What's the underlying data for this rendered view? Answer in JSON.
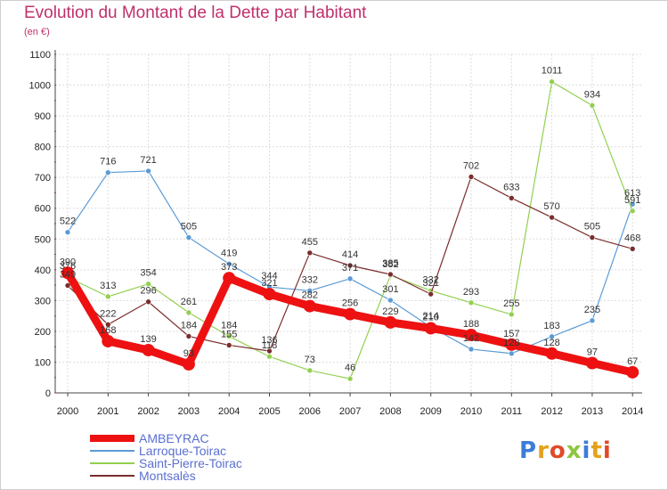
{
  "header": {
    "title": "Evolution du Montant de la Dette par Habitant",
    "subtitle": "(en €)"
  },
  "logo": {
    "text": "Proxiti",
    "colors": [
      "#3b7dd8",
      "#e3a21a",
      "#e04a2a",
      "#8cc63f",
      "#3b7dd8",
      "#e3a21a",
      "#e04a2a"
    ]
  },
  "chart_data": {
    "type": "line",
    "title": "Evolution du Montant de la Dette par Habitant",
    "subtitle": "(en €)",
    "xlabel": "",
    "ylabel": "",
    "x": [
      "2000",
      "2001",
      "2002",
      "2003",
      "2004",
      "2005",
      "2006",
      "2007",
      "2008",
      "2009",
      "2010",
      "2011",
      "2012",
      "2013",
      "2014"
    ],
    "ylim": [
      0,
      1100
    ],
    "yticks": [
      0,
      100,
      200,
      300,
      400,
      500,
      600,
      700,
      800,
      900,
      1000,
      1100
    ],
    "grid": true,
    "legend_position": "bottom-left",
    "series": [
      {
        "name": "AMBEYRAC",
        "color": "#ee1111",
        "emphasis": true,
        "values": [
          390,
          168,
          139,
          93,
          373,
          321,
          282,
          256,
          229,
          210,
          188,
          157,
          128,
          97,
          67
        ],
        "labels": [
          "390",
          "168",
          "139",
          "93",
          "373",
          "321",
          "282",
          "256",
          "229",
          "210",
          "188",
          "157",
          "128",
          "97",
          "67"
        ]
      },
      {
        "name": "Larroque-Toirac",
        "color": "#5b9bd5",
        "values": [
          522,
          716,
          721,
          505,
          419,
          344,
          332,
          371,
          301,
          214,
          142,
          128,
          183,
          235,
          613
        ],
        "labels": [
          "522",
          "716",
          "721",
          "505",
          "419",
          "344",
          "332",
          "371",
          "301",
          "214",
          "142",
          "128",
          "183",
          "235",
          "613"
        ]
      },
      {
        "name": "Saint-Pierre-Toirac",
        "color": "#92d050",
        "values": [
          376,
          313,
          354,
          261,
          184,
          118,
          73,
          46,
          382,
          332,
          293,
          255,
          1011,
          934,
          591
        ],
        "labels": [
          "376",
          "313",
          "354",
          "261",
          "184",
          "118",
          "73",
          "46",
          "382",
          "332",
          "293",
          "255",
          "1011",
          "934",
          "591"
        ]
      },
      {
        "name": "Montsalès",
        "color": "#7b2d2d",
        "values": [
          349,
          222,
          296,
          184,
          155,
          136,
          455,
          414,
          385,
          321,
          702,
          633,
          570,
          505,
          468
        ],
        "labels": [
          "349",
          "222",
          "296",
          "184",
          "155",
          "136",
          "455",
          "414",
          "385",
          "321",
          "702",
          "633",
          "570",
          "505",
          "468"
        ]
      }
    ]
  }
}
